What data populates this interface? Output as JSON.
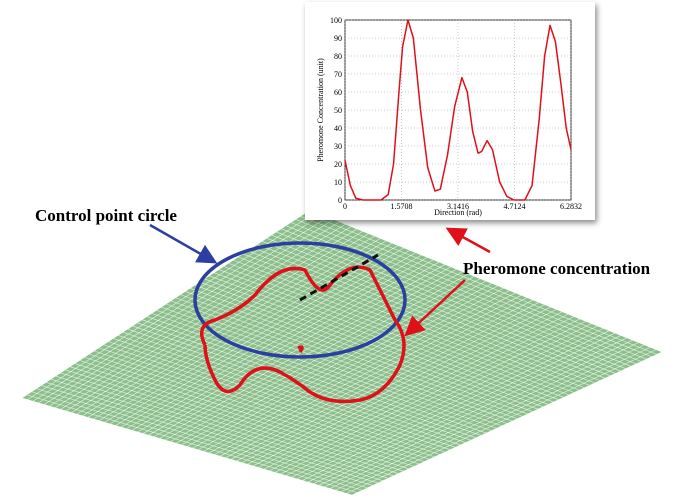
{
  "chart_data": {
    "type": "line",
    "xlabel": "Direction (rad)",
    "ylabel": "Pheromone Concentration (unit)",
    "x": [
      0,
      0.15,
      0.3,
      0.5,
      0.8,
      1.0,
      1.2,
      1.35,
      1.5,
      1.6,
      1.75,
      1.9,
      2.1,
      2.3,
      2.5,
      2.65,
      2.85,
      3.05,
      3.25,
      3.4,
      3.55,
      3.7,
      3.8,
      3.95,
      4.1,
      4.3,
      4.5,
      4.7,
      5.0,
      5.2,
      5.4,
      5.55,
      5.7,
      5.85,
      6.0,
      6.15,
      6.2832
    ],
    "series": [
      {
        "color": "#e0101a",
        "values": [
          22,
          8,
          1,
          0,
          0,
          0,
          3,
          20,
          60,
          85,
          100,
          90,
          50,
          18,
          5,
          6,
          25,
          52,
          68,
          60,
          38,
          26,
          27,
          33,
          28,
          10,
          2,
          0,
          0,
          8,
          45,
          80,
          97,
          88,
          65,
          40,
          28
        ]
      }
    ],
    "xlim": [
      0,
      6.2832
    ],
    "xticks": [
      0,
      1.5708,
      3.1416,
      4.7124,
      6.2832
    ],
    "ylim": [
      0,
      100
    ],
    "yticks": [
      0,
      10,
      20,
      30,
      40,
      50,
      60,
      70,
      80,
      90,
      100
    ],
    "grid": true,
    "annotations": [
      "Control point circle",
      "Pheromone concentration"
    ]
  }
}
